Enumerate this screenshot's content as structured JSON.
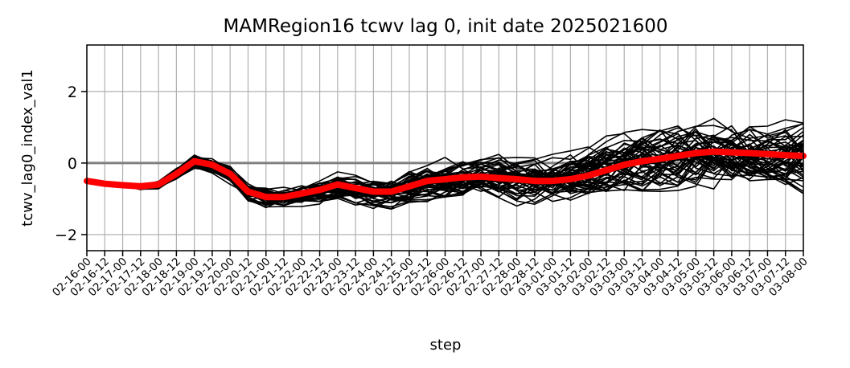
{
  "chart_data": {
    "type": "line",
    "title": "MAMRegion16 tcwv lag 0, init date 2025021600",
    "xlabel": "step",
    "ylabel": "tcwv_lag0_index_val1",
    "ylim": [
      -2.45,
      3.3
    ],
    "yticks": [
      -2,
      0,
      2
    ],
    "grid": true,
    "zero_line": true,
    "x": [
      "02-16-00",
      "02-16-12",
      "02-17-00",
      "02-17-12",
      "02-18-00",
      "02-18-12",
      "02-19-00",
      "02-19-12",
      "02-20-00",
      "02-20-12",
      "02-21-00",
      "02-21-12",
      "02-22-00",
      "02-22-12",
      "02-23-00",
      "02-23-12",
      "02-24-00",
      "02-24-12",
      "02-25-00",
      "02-25-12",
      "02-26-00",
      "02-26-12",
      "02-27-00",
      "02-27-12",
      "02-28-00",
      "02-28-12",
      "03-01-00",
      "03-01-12",
      "03-02-00",
      "03-02-12",
      "03-03-00",
      "03-03-12",
      "03-04-00",
      "03-04-12",
      "03-05-00",
      "03-05-12",
      "03-06-00",
      "03-06-12",
      "03-07-00",
      "03-07-12",
      "03-08-00"
    ],
    "mean_series": {
      "color": "#ff0000",
      "values": [
        -0.5,
        -0.58,
        -0.62,
        -0.65,
        -0.6,
        -0.3,
        0.05,
        -0.05,
        -0.3,
        -0.8,
        -0.95,
        -0.95,
        -0.85,
        -0.75,
        -0.6,
        -0.7,
        -0.8,
        -0.8,
        -0.65,
        -0.5,
        -0.45,
        -0.4,
        -0.38,
        -0.42,
        -0.45,
        -0.5,
        -0.5,
        -0.45,
        -0.35,
        -0.2,
        -0.05,
        0.05,
        0.12,
        0.2,
        0.28,
        0.32,
        0.3,
        0.28,
        0.25,
        0.22,
        0.2
      ]
    },
    "ensemble_color": "#000000",
    "ensemble_member_count": 50
  }
}
